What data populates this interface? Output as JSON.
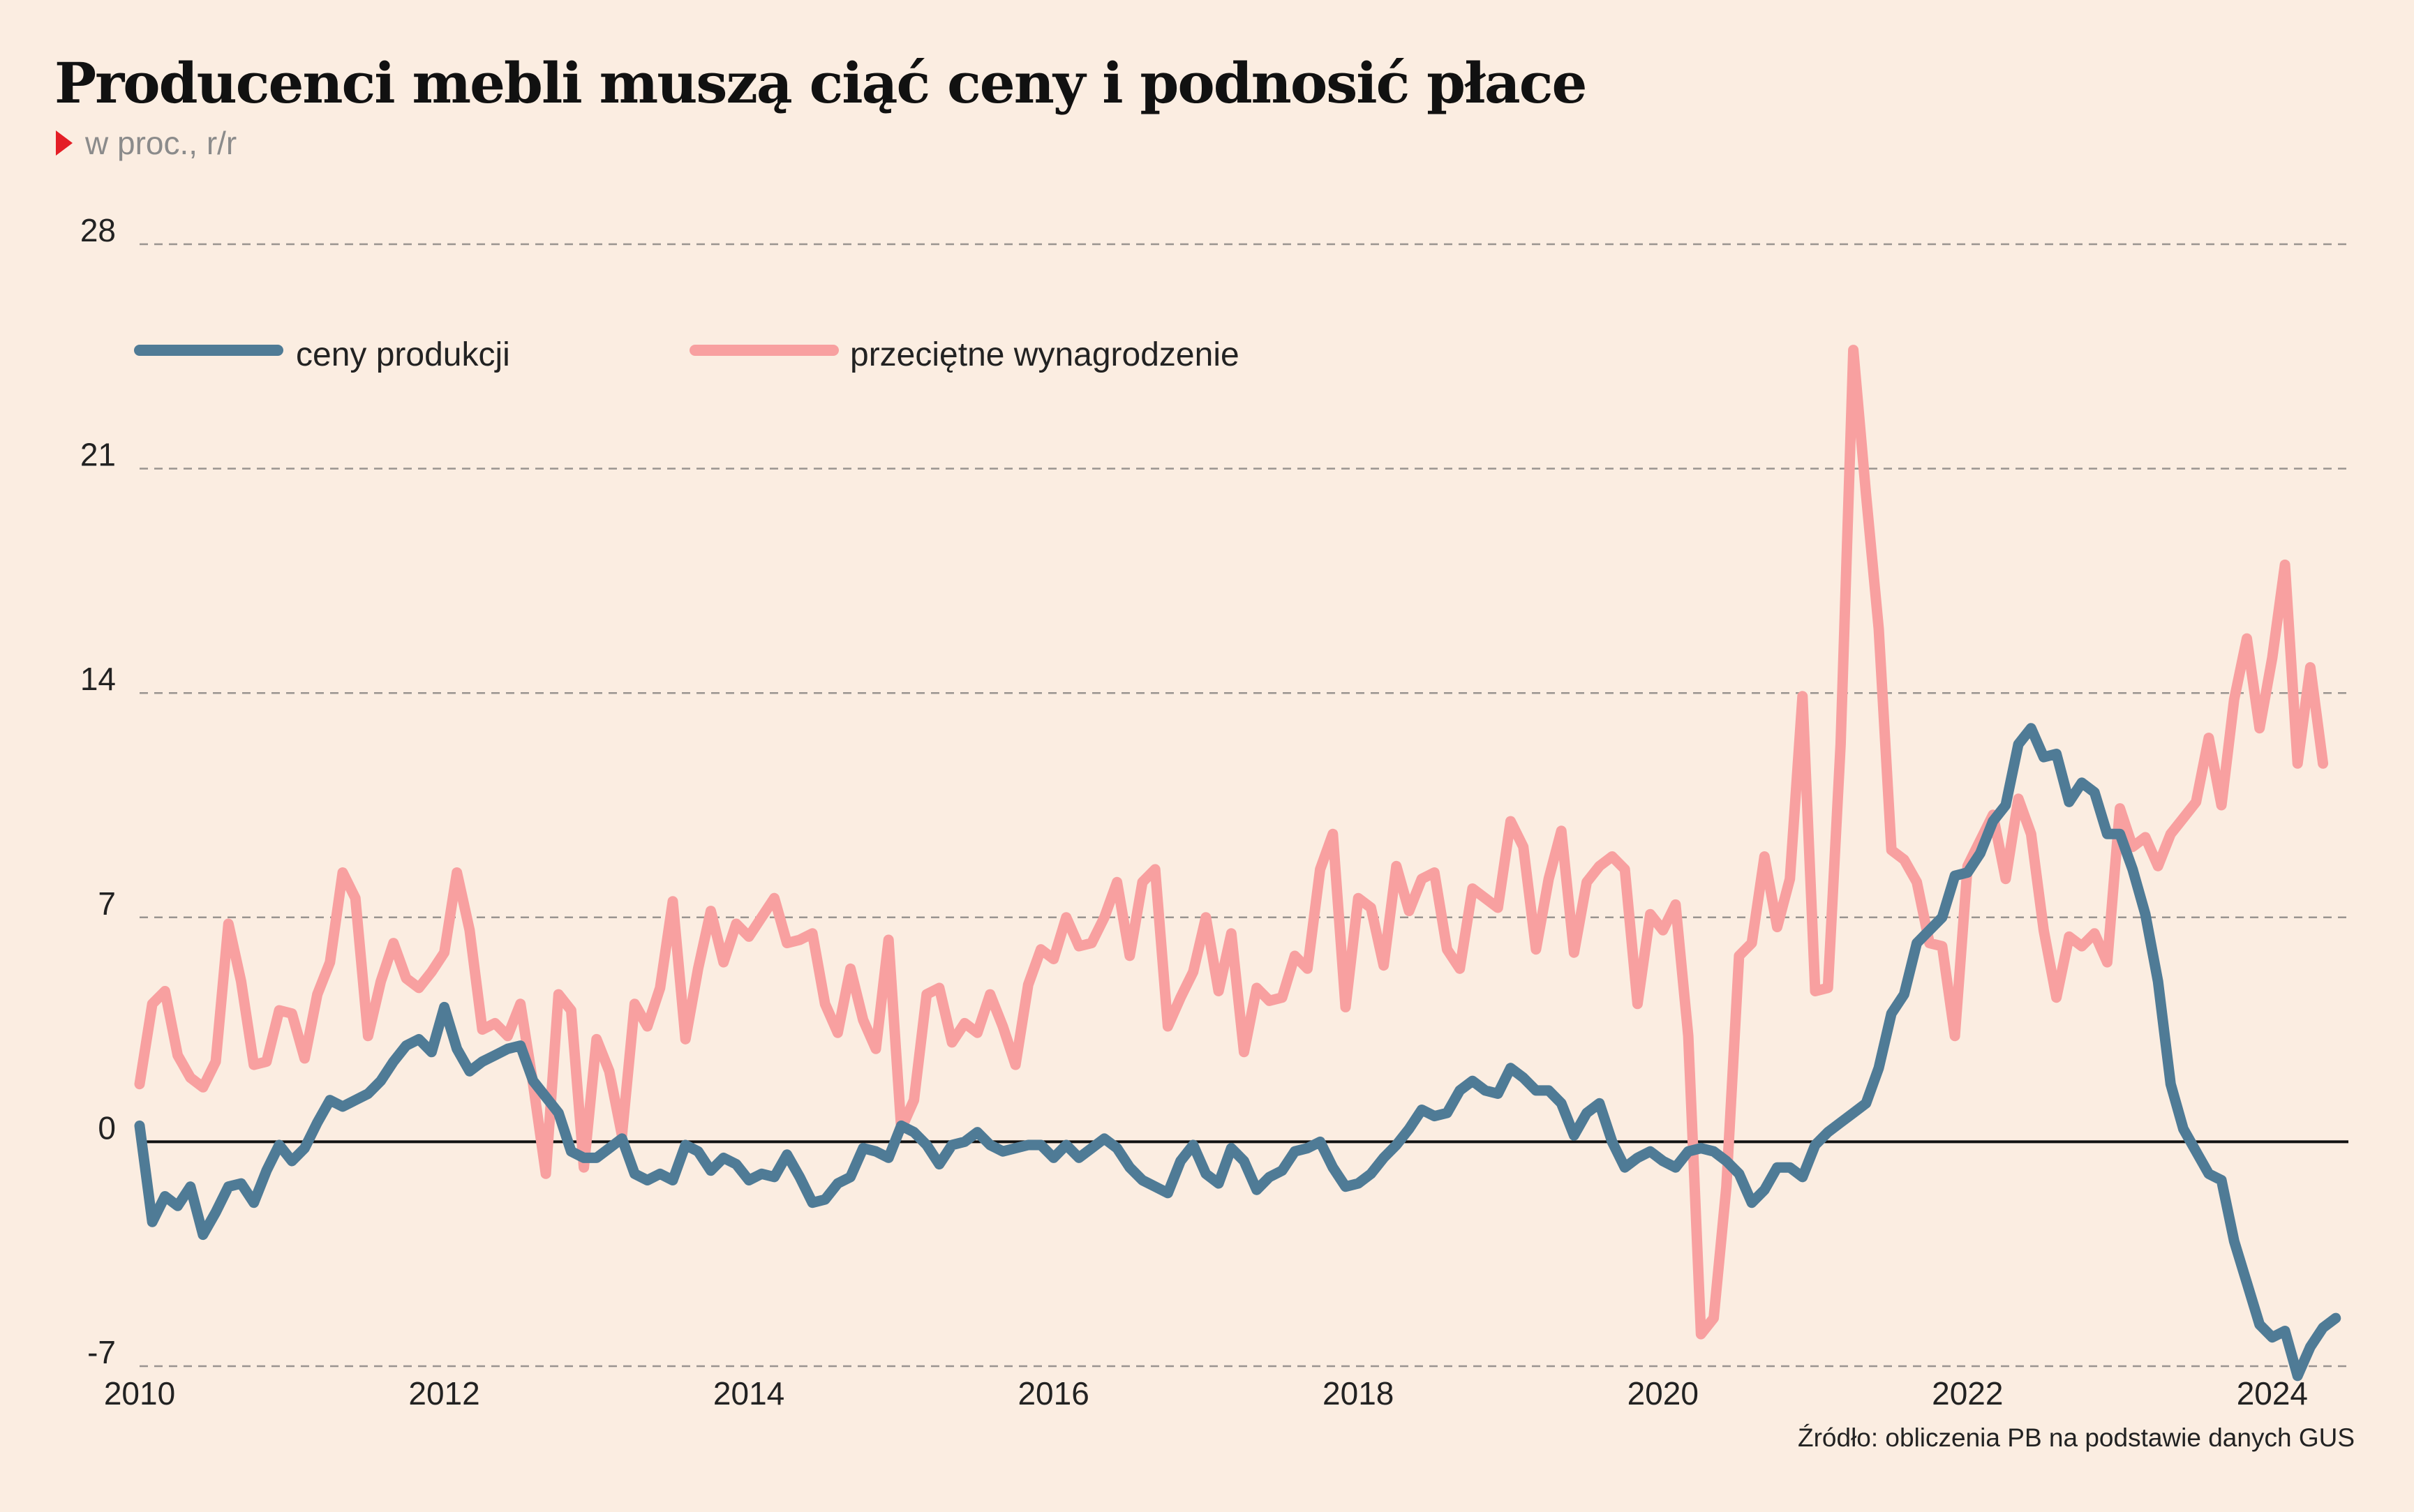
{
  "title": "Producenci mebli muszą ciąć ceny i podnosić płace",
  "subtitle": "w proc., r/r",
  "source": "Źródło: obliczenia PB na podstawie danych GUS",
  "colors": {
    "background": "#fbede1",
    "ceny_produkcji": "#4f7b96",
    "wynagrodzenie": "#f8a0a0",
    "marker": "#e41e26"
  },
  "chart_data": {
    "type": "line",
    "x_label": "",
    "y_label": "",
    "ylim": [
      -7,
      28
    ],
    "y_ticks": [
      28,
      21,
      14,
      7,
      0,
      -7
    ],
    "y_tick_labels": [
      "28",
      "21",
      "14",
      "7",
      "0",
      "-7"
    ],
    "x_ticks": [
      2010,
      2012,
      2014,
      2016,
      2018,
      2020,
      2022,
      2024
    ],
    "x_tick_labels": [
      "2010",
      "2012",
      "2014",
      "2016",
      "2018",
      "2020",
      "2022",
      "2024"
    ],
    "grid": "horizontal dashed",
    "legend_position": "top-left",
    "x_start": "2010-01",
    "x_frequency": "monthly",
    "series": [
      {
        "name": "ceny produkcji",
        "color": "#4f7b96",
        "values": [
          0.5,
          -2.5,
          -1.7,
          -2.0,
          -1.4,
          -2.9,
          -2.2,
          -1.4,
          -1.3,
          -1.9,
          -0.9,
          -0.1,
          -0.6,
          -0.2,
          0.6,
          1.3,
          1.1,
          1.3,
          1.5,
          1.9,
          2.5,
          3.0,
          3.2,
          2.8,
          4.2,
          2.9,
          2.2,
          2.5,
          2.7,
          2.9,
          3.0,
          1.9,
          1.4,
          0.9,
          -0.3,
          -0.5,
          -0.5,
          -0.2,
          0.1,
          -1.0,
          -1.2,
          -1.0,
          -1.2,
          -0.1,
          -0.3,
          -0.9,
          -0.5,
          -0.7,
          -1.2,
          -1.0,
          -1.1,
          -0.4,
          -1.1,
          -1.9,
          -1.8,
          -1.3,
          -1.1,
          -0.2,
          -0.3,
          -0.5,
          0.5,
          0.3,
          -0.1,
          -0.7,
          -0.1,
          0.0,
          0.3,
          -0.1,
          -0.3,
          -0.2,
          -0.1,
          -0.1,
          -0.5,
          -0.1,
          -0.5,
          -0.2,
          0.1,
          -0.2,
          -0.8,
          -1.2,
          -1.4,
          -1.6,
          -0.6,
          -0.1,
          -1.0,
          -1.3,
          -0.2,
          -0.6,
          -1.5,
          -1.1,
          -0.9,
          -0.3,
          -0.2,
          0.0,
          -0.8,
          -1.4,
          -1.3,
          -1.0,
          -0.5,
          -0.1,
          0.4,
          1.0,
          0.8,
          0.9,
          1.6,
          1.9,
          1.6,
          1.5,
          2.3,
          2.0,
          1.6,
          1.6,
          1.2,
          0.2,
          0.9,
          1.2,
          0.0,
          -0.8,
          -0.5,
          -0.3,
          -0.6,
          -0.8,
          -0.3,
          -0.2,
          -0.3,
          -0.6,
          -1.0,
          -1.9,
          -1.5,
          -0.8,
          -0.8,
          -1.1,
          -0.1,
          0.3,
          0.6,
          0.9,
          1.2,
          2.3,
          4.0,
          4.6,
          6.2,
          6.6,
          7.0,
          8.3,
          8.4,
          9.0,
          10.0,
          10.5,
          12.4,
          12.9,
          12.0,
          12.1,
          10.6,
          11.2,
          10.9,
          9.6,
          9.6,
          8.5,
          7.1,
          5.0,
          1.8,
          0.4,
          -0.3,
          -1.0,
          -1.2,
          -3.1,
          -4.4,
          -5.7,
          -6.1,
          -5.9,
          -7.3,
          -6.4,
          -5.8,
          -5.5
        ]
      },
      {
        "name": "przeciętne wynagrodzenie",
        "color": "#f8a0a0",
        "values": [
          1.8,
          4.3,
          4.7,
          2.7,
          2.0,
          1.7,
          2.5,
          6.8,
          5.0,
          2.4,
          2.5,
          4.1,
          4.0,
          2.6,
          4.6,
          5.6,
          8.4,
          7.6,
          3.3,
          5.0,
          6.2,
          5.1,
          4.8,
          5.3,
          5.9,
          8.4,
          6.6,
          3.5,
          3.7,
          3.3,
          4.3,
          1.8,
          -1.0,
          4.6,
          4.1,
          -0.8,
          3.2,
          2.2,
          0.2,
          4.3,
          3.6,
          4.8,
          7.5,
          3.2,
          5.4,
          7.2,
          5.6,
          6.8,
          6.4,
          7.0,
          7.6,
          6.2,
          6.3,
          6.5,
          4.3,
          3.4,
          5.4,
          3.8,
          2.9,
          6.3,
          0.4,
          1.3,
          4.6,
          4.8,
          3.1,
          3.7,
          3.4,
          4.6,
          3.6,
          2.4,
          4.9,
          6.0,
          5.7,
          7.0,
          6.1,
          6.2,
          7.0,
          8.1,
          5.8,
          8.1,
          8.5,
          3.6,
          4.5,
          5.3,
          7.0,
          4.7,
          6.5,
          2.8,
          4.8,
          4.4,
          4.5,
          5.8,
          5.4,
          8.5,
          9.6,
          4.2,
          7.6,
          7.3,
          5.5,
          8.6,
          7.2,
          8.2,
          8.4,
          6.0,
          5.4,
          7.9,
          7.6,
          7.3,
          10.0,
          9.2,
          6.0,
          8.2,
          9.7,
          5.9,
          8.1,
          8.6,
          8.9,
          8.5,
          4.3,
          7.1,
          6.6,
          7.4,
          3.3,
          -6.0,
          -5.5,
          -1.4,
          5.8,
          6.2,
          8.9,
          6.7,
          8.2,
          13.9,
          4.7,
          4.8,
          12.4,
          24.7,
          20.2,
          16.0,
          9.1,
          8.8,
          8.1,
          6.2,
          6.1,
          3.3,
          8.6,
          9.4,
          10.2,
          8.2,
          10.7,
          9.6,
          6.6,
          4.5,
          6.4,
          6.1,
          6.5,
          5.6,
          10.4,
          9.2,
          9.5,
          8.6,
          9.6,
          10.1,
          10.6,
          12.6,
          10.5,
          13.8,
          15.7,
          12.9,
          15.1,
          18.0,
          11.8,
          14.8,
          11.8
        ]
      }
    ]
  }
}
